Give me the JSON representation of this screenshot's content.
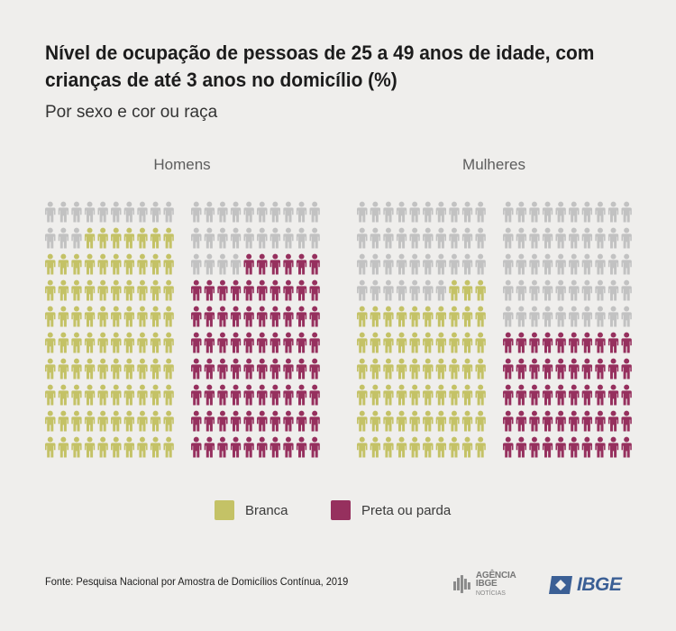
{
  "header": {
    "title": "Nível de ocupação de pessoas de 25 a 49 anos de idade, com crianças de até 3 anos no domicílio (%)",
    "subtitle": "Por sexo e cor ou raça"
  },
  "colors": {
    "branca": "#c4c266",
    "preta_parda": "#96305e",
    "empty": "#c2c2c2",
    "background": "#efeeec"
  },
  "chart_data": {
    "type": "pictogram",
    "unit": "%",
    "groups": [
      {
        "name": "Homens",
        "series": [
          {
            "name": "Branca",
            "value": 87,
            "color": "#c4c266"
          },
          {
            "name": "Preta ou parda",
            "value": 76,
            "color": "#96305e"
          }
        ]
      },
      {
        "name": "Mulheres",
        "series": [
          {
            "name": "Branca",
            "value": 63,
            "color": "#c4c266"
          },
          {
            "name": "Preta ou parda",
            "value": 50,
            "color": "#96305e"
          }
        ]
      }
    ],
    "icons_per_grid": 100,
    "legend": [
      {
        "label": "Branca",
        "color": "#c4c266"
      },
      {
        "label": "Preta ou parda",
        "color": "#96305e"
      }
    ],
    "legend_position": "bottom"
  },
  "footer": {
    "source": "Fonte: Pesquisa Nacional por Amostra de Domicílios Contínua, 2019",
    "logo_agencia_line1": "AGÊNCIA IBGE",
    "logo_agencia_line2": "NOTÍCIAS",
    "logo_ibge": "IBGE"
  }
}
